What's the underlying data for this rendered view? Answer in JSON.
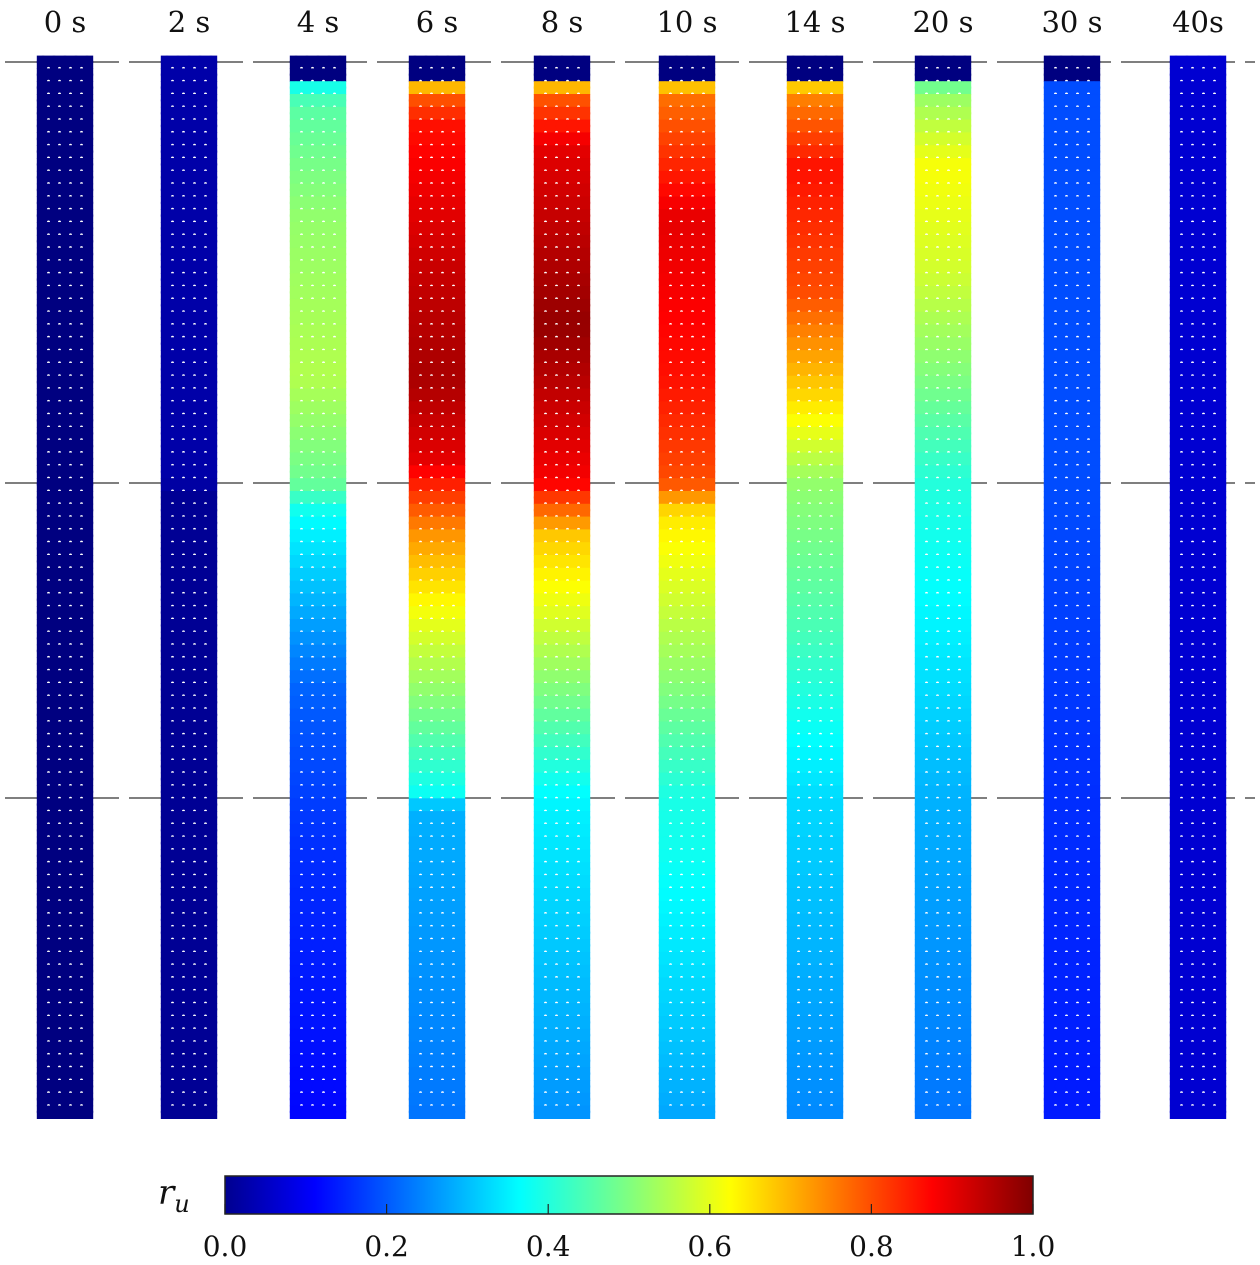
{
  "chart_data": {
    "type": "heatmap",
    "description_axis": "columns are time snapshots; rows are depth positions of particles",
    "columns": [
      "0 s",
      "2 s",
      "4 s",
      "6 s",
      "8 s",
      "10 s",
      "14 s",
      "20 s",
      "30 s",
      "40s"
    ],
    "layers": [
      {
        "depth_fraction_start": 0.0,
        "depth_fraction_end": 0.4
      },
      {
        "depth_fraction_start": 0.4,
        "depth_fraction_end": 0.7
      },
      {
        "depth_fraction_start": 0.7,
        "depth_fraction_end": 1.0
      }
    ],
    "depth_profiles": [
      {
        "label": "0 s",
        "values": [
          [
            0.0,
            0.0
          ],
          [
            1.0,
            0.0
          ]
        ]
      },
      {
        "label": "2 s",
        "values": [
          [
            0.0,
            0.04
          ],
          [
            0.4,
            0.04
          ],
          [
            0.41,
            0.02
          ],
          [
            1.0,
            0.02
          ]
        ]
      },
      {
        "label": "4 s",
        "values": [
          [
            0.0,
            0.0
          ],
          [
            0.015,
            0.0
          ],
          [
            0.02,
            0.38
          ],
          [
            0.04,
            0.46
          ],
          [
            0.15,
            0.52
          ],
          [
            0.3,
            0.55
          ],
          [
            0.4,
            0.48
          ],
          [
            0.43,
            0.38
          ],
          [
            0.6,
            0.22
          ],
          [
            0.75,
            0.17
          ],
          [
            1.0,
            0.13
          ]
        ]
      },
      {
        "label": "6 s",
        "values": [
          [
            0.0,
            0.0
          ],
          [
            0.015,
            0.0
          ],
          [
            0.02,
            0.63
          ],
          [
            0.03,
            0.78
          ],
          [
            0.06,
            0.86
          ],
          [
            0.2,
            0.93
          ],
          [
            0.3,
            0.96
          ],
          [
            0.38,
            0.9
          ],
          [
            0.4,
            0.85
          ],
          [
            0.45,
            0.73
          ],
          [
            0.52,
            0.62
          ],
          [
            0.65,
            0.45
          ],
          [
            0.7,
            0.38
          ],
          [
            0.71,
            0.3
          ],
          [
            1.0,
            0.24
          ]
        ]
      },
      {
        "label": "8 s",
        "values": [
          [
            0.0,
            0.0
          ],
          [
            0.015,
            0.0
          ],
          [
            0.02,
            0.63
          ],
          [
            0.03,
            0.78
          ],
          [
            0.08,
            0.9
          ],
          [
            0.25,
            0.98
          ],
          [
            0.4,
            0.88
          ],
          [
            0.45,
            0.68
          ],
          [
            0.52,
            0.6
          ],
          [
            0.7,
            0.37
          ],
          [
            0.72,
            0.36
          ],
          [
            1.0,
            0.27
          ]
        ]
      },
      {
        "label": "10 s",
        "values": [
          [
            0.0,
            0.0
          ],
          [
            0.015,
            0.0
          ],
          [
            0.02,
            0.63
          ],
          [
            0.03,
            0.76
          ],
          [
            0.15,
            0.9
          ],
          [
            0.3,
            0.86
          ],
          [
            0.4,
            0.8
          ],
          [
            0.43,
            0.65
          ],
          [
            0.58,
            0.52
          ],
          [
            0.7,
            0.4
          ],
          [
            0.75,
            0.39
          ],
          [
            1.0,
            0.29
          ]
        ]
      },
      {
        "label": "14 s",
        "values": [
          [
            0.0,
            0.0
          ],
          [
            0.015,
            0.0
          ],
          [
            0.02,
            0.63
          ],
          [
            0.03,
            0.74
          ],
          [
            0.1,
            0.86
          ],
          [
            0.22,
            0.8
          ],
          [
            0.32,
            0.66
          ],
          [
            0.4,
            0.52
          ],
          [
            0.55,
            0.44
          ],
          [
            0.7,
            0.34
          ],
          [
            1.0,
            0.26
          ]
        ]
      },
      {
        "label": "20 s",
        "values": [
          [
            0.0,
            0.0
          ],
          [
            0.015,
            0.0
          ],
          [
            0.02,
            0.46
          ],
          [
            0.03,
            0.52
          ],
          [
            0.1,
            0.62
          ],
          [
            0.2,
            0.58
          ],
          [
            0.3,
            0.5
          ],
          [
            0.4,
            0.41
          ],
          [
            0.55,
            0.36
          ],
          [
            0.7,
            0.3
          ],
          [
            1.0,
            0.24
          ]
        ]
      },
      {
        "label": "30 s",
        "values": [
          [
            0.0,
            0.0
          ],
          [
            0.015,
            0.0
          ],
          [
            0.02,
            0.2
          ],
          [
            0.4,
            0.2
          ],
          [
            0.7,
            0.17
          ],
          [
            1.0,
            0.15
          ]
        ]
      },
      {
        "label": "40s",
        "values": [
          [
            0.0,
            0.08
          ],
          [
            1.0,
            0.08
          ]
        ]
      }
    ],
    "colorbar": {
      "label_symbol": "r",
      "label_subscript": "u",
      "range": [
        0.0,
        1.0
      ],
      "colormap": "jet",
      "ticks": [
        "0.0",
        "0.2",
        "0.4",
        "0.6",
        "0.8",
        "1.0"
      ],
      "tick_values": [
        0.0,
        0.2,
        0.4,
        0.6,
        0.8,
        1.0
      ]
    },
    "grid": "particle columns (5 across) with dashed layer-boundary lines"
  }
}
